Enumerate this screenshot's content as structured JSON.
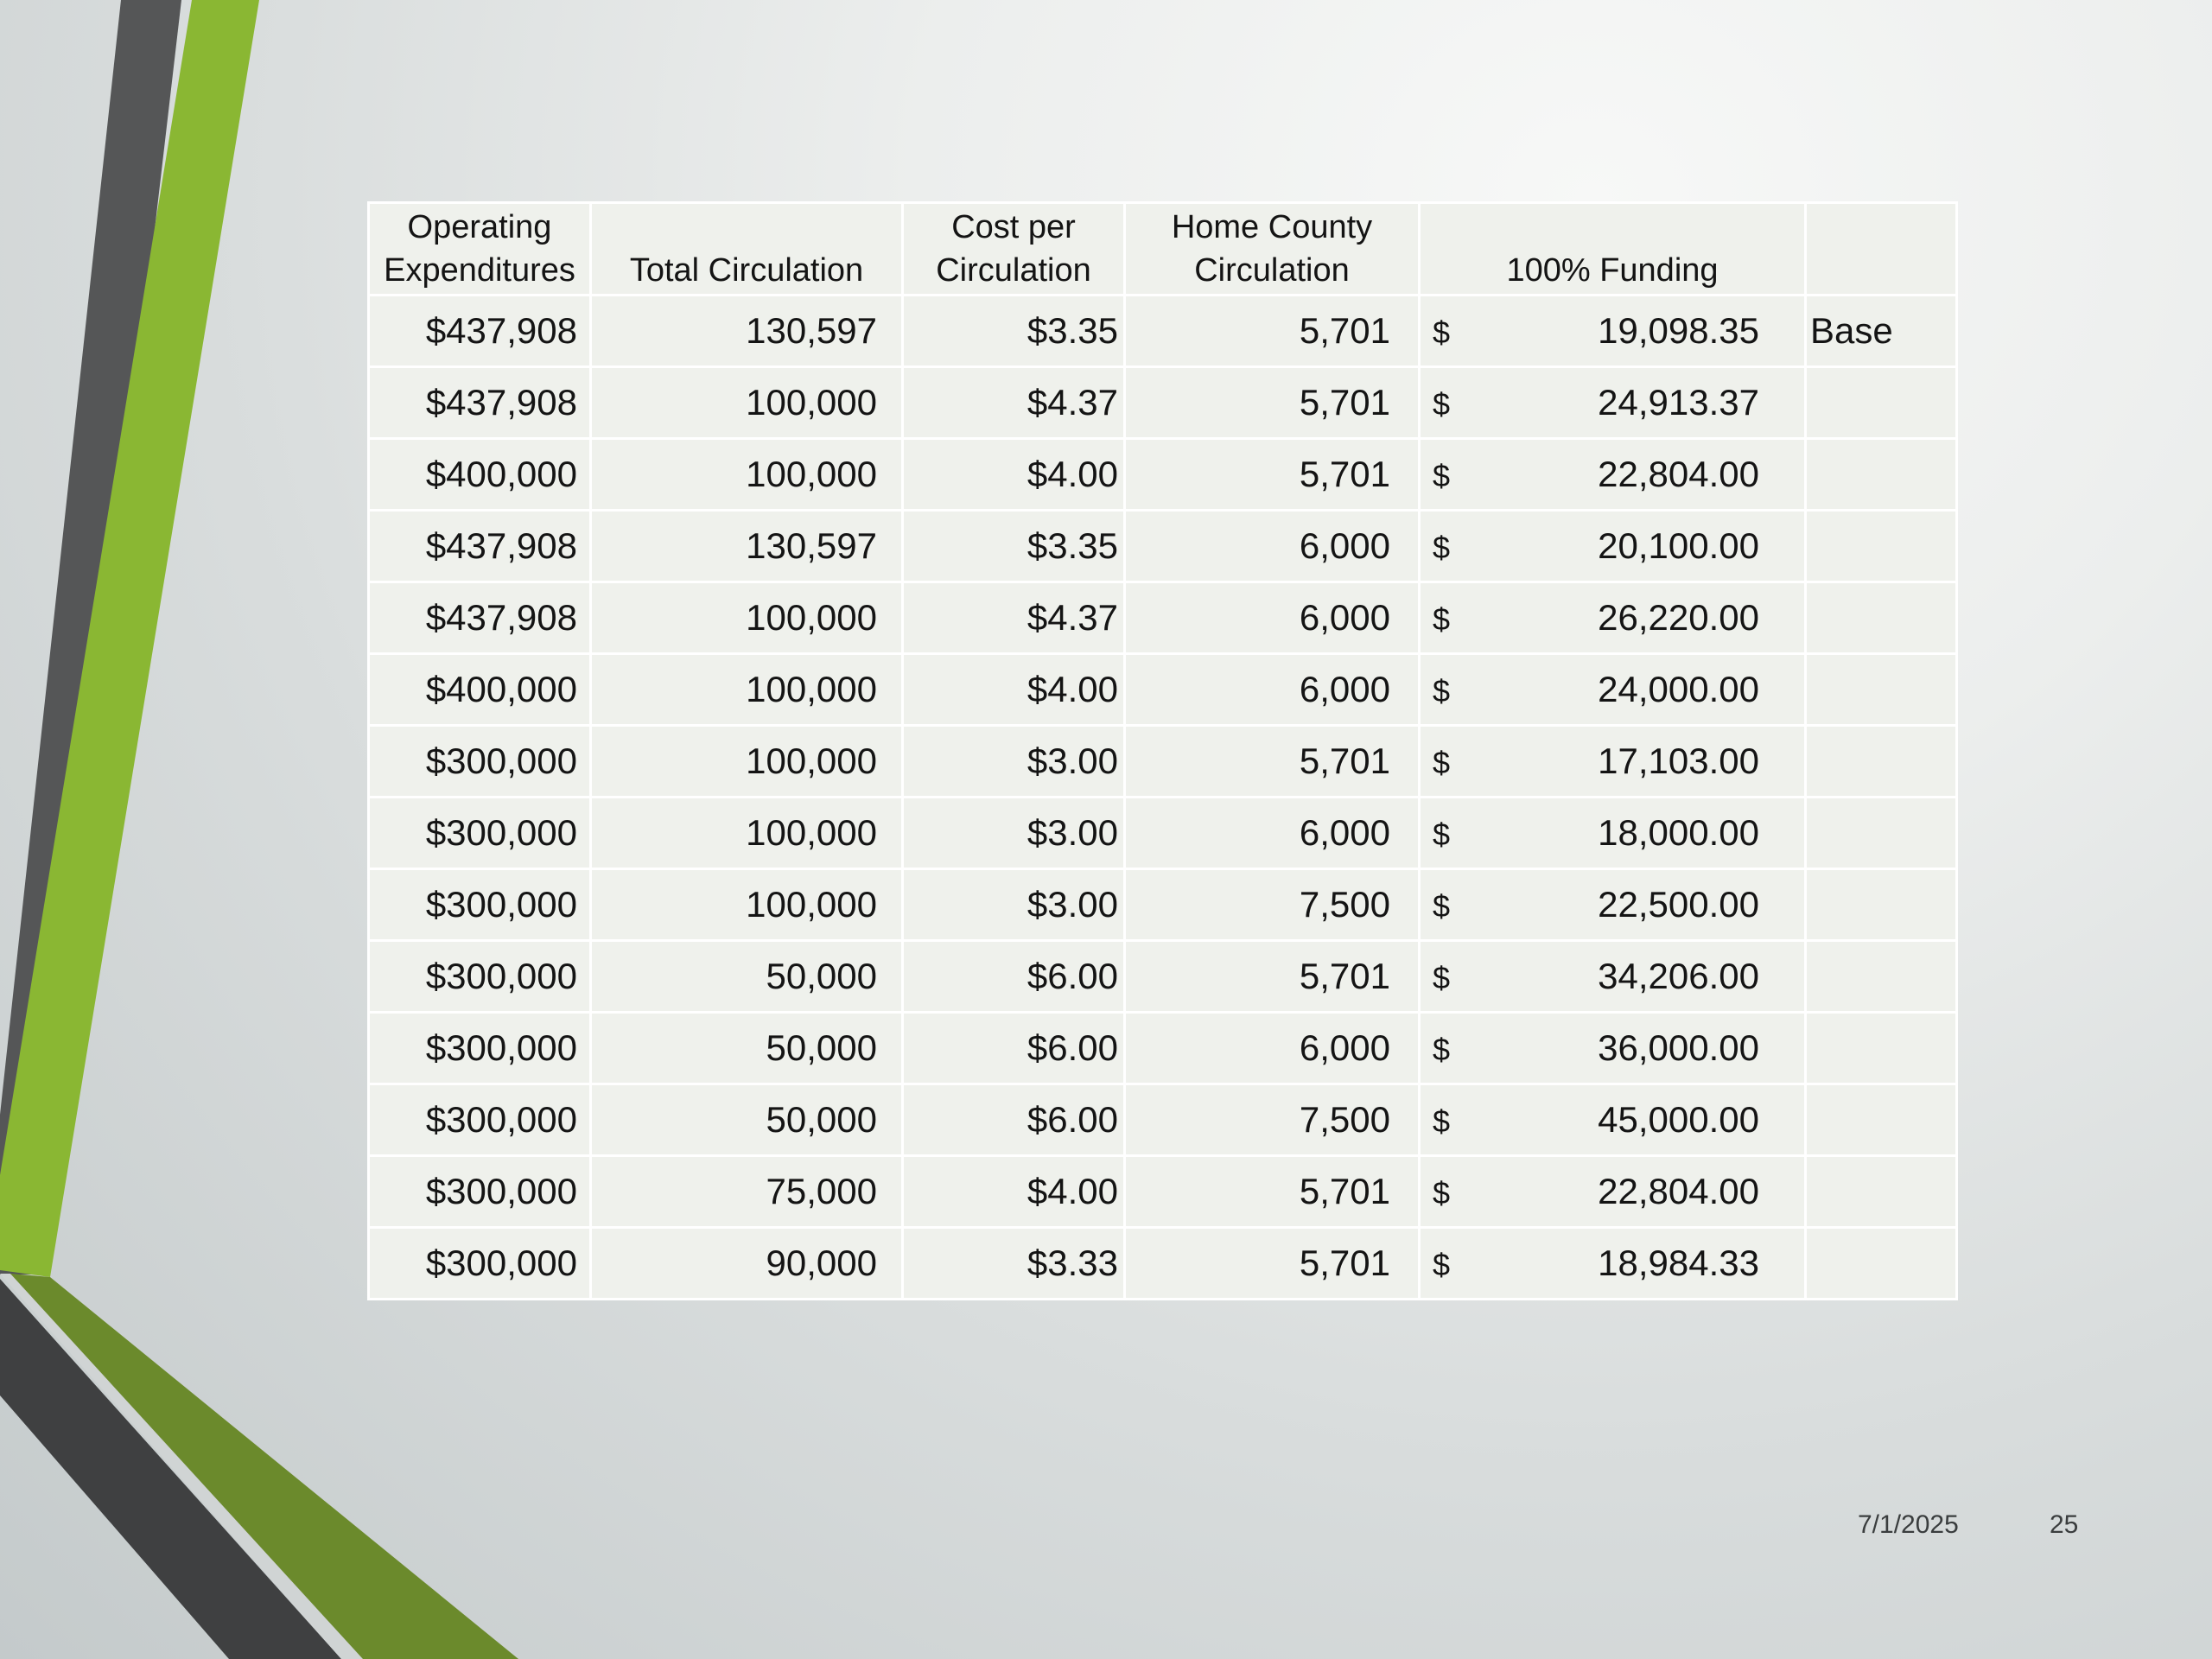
{
  "table": {
    "headers": [
      [
        "Operating",
        "Expenditures"
      ],
      [
        "",
        "Total Circulation"
      ],
      [
        "Cost per",
        "Circulation"
      ],
      [
        "Home County",
        "Circulation"
      ],
      [
        "",
        "100% Funding"
      ],
      [
        "",
        ""
      ]
    ],
    "rows": [
      {
        "operating": "$437,908",
        "total_circulation": "130,597",
        "cost_per_circulation": "$3.35",
        "home_county_circulation": "5,701",
        "currency": "$",
        "funding": "19,098.35",
        "note": "Base"
      },
      {
        "operating": "$437,908",
        "total_circulation": "100,000",
        "cost_per_circulation": "$4.37",
        "home_county_circulation": "5,701",
        "currency": "$",
        "funding": "24,913.37",
        "note": ""
      },
      {
        "operating": "$400,000",
        "total_circulation": "100,000",
        "cost_per_circulation": "$4.00",
        "home_county_circulation": "5,701",
        "currency": "$",
        "funding": "22,804.00",
        "note": ""
      },
      {
        "operating": "$437,908",
        "total_circulation": "130,597",
        "cost_per_circulation": "$3.35",
        "home_county_circulation": "6,000",
        "currency": "$",
        "funding": "20,100.00",
        "note": ""
      },
      {
        "operating": "$437,908",
        "total_circulation": "100,000",
        "cost_per_circulation": "$4.37",
        "home_county_circulation": "6,000",
        "currency": "$",
        "funding": "26,220.00",
        "note": ""
      },
      {
        "operating": "$400,000",
        "total_circulation": "100,000",
        "cost_per_circulation": "$4.00",
        "home_county_circulation": "6,000",
        "currency": "$",
        "funding": "24,000.00",
        "note": ""
      },
      {
        "operating": "$300,000",
        "total_circulation": "100,000",
        "cost_per_circulation": "$3.00",
        "home_county_circulation": "5,701",
        "currency": "$",
        "funding": "17,103.00",
        "note": ""
      },
      {
        "operating": "$300,000",
        "total_circulation": "100,000",
        "cost_per_circulation": "$3.00",
        "home_county_circulation": "6,000",
        "currency": "$",
        "funding": "18,000.00",
        "note": ""
      },
      {
        "operating": "$300,000",
        "total_circulation": "100,000",
        "cost_per_circulation": "$3.00",
        "home_county_circulation": "7,500",
        "currency": "$",
        "funding": "22,500.00",
        "note": ""
      },
      {
        "operating": "$300,000",
        "total_circulation": "50,000",
        "cost_per_circulation": "$6.00",
        "home_county_circulation": "5,701",
        "currency": "$",
        "funding": "34,206.00",
        "note": ""
      },
      {
        "operating": "$300,000",
        "total_circulation": "50,000",
        "cost_per_circulation": "$6.00",
        "home_county_circulation": "6,000",
        "currency": "$",
        "funding": "36,000.00",
        "note": ""
      },
      {
        "operating": "$300,000",
        "total_circulation": "50,000",
        "cost_per_circulation": "$6.00",
        "home_county_circulation": "7,500",
        "currency": "$",
        "funding": "45,000.00",
        "note": ""
      },
      {
        "operating": "$300,000",
        "total_circulation": "75,000",
        "cost_per_circulation": "$4.00",
        "home_county_circulation": "5,701",
        "currency": "$",
        "funding": "22,804.00",
        "note": ""
      },
      {
        "operating": "$300,000",
        "total_circulation": "90,000",
        "cost_per_circulation": "$3.33",
        "home_county_circulation": "5,701",
        "currency": "$",
        "funding": "18,984.33",
        "note": ""
      }
    ]
  },
  "footer": {
    "date": "7/1/2025",
    "slide_number": "25"
  },
  "theme": {
    "accent_green": "#8ab733",
    "dark_green": "#6b8a2c",
    "dark_gray": "#555657",
    "darker_gray": "#3f4041"
  }
}
